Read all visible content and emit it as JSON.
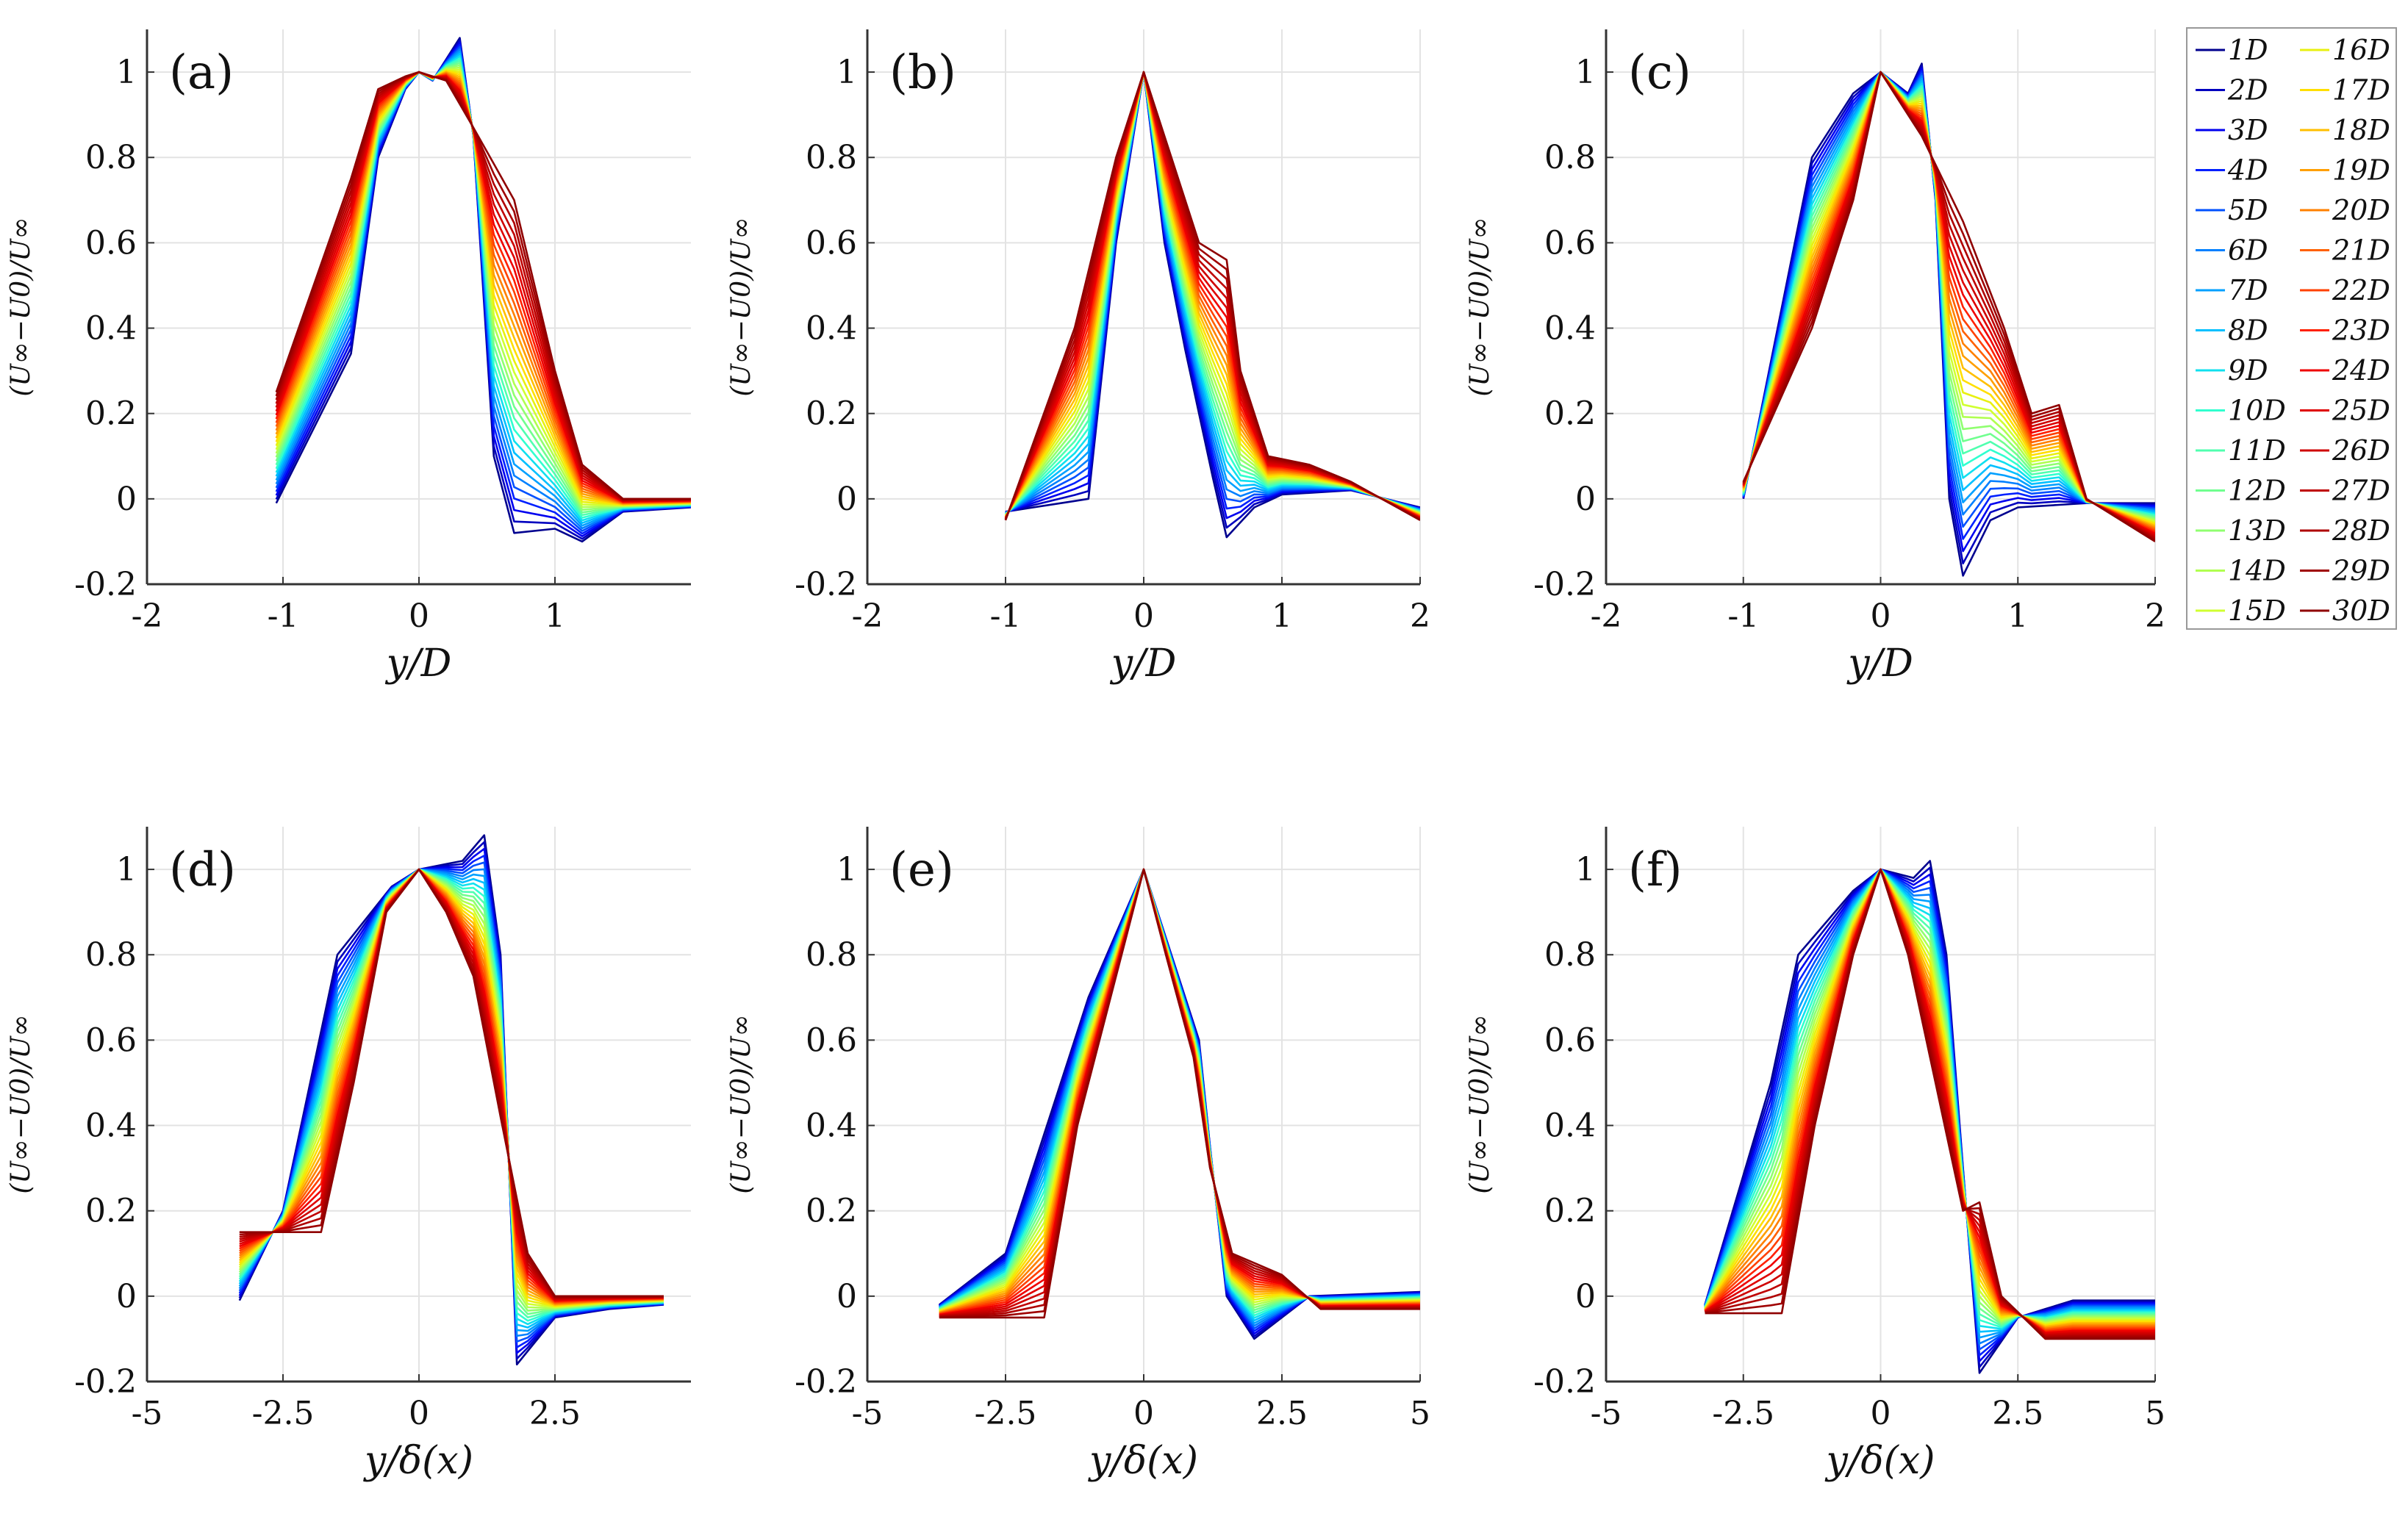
{
  "chart_data": [
    {
      "type": "line",
      "panel": "a",
      "label": "(a)",
      "xlabel": "y/D",
      "ylabel": "(U∞−U0)/U∞",
      "xlim": [
        -2,
        2
      ],
      "ylim": [
        -0.2,
        1.1
      ],
      "xticks": [
        {
          "v": -2,
          "t": "-2"
        },
        {
          "v": -1,
          "t": "-1"
        },
        {
          "v": 0,
          "t": "0"
        },
        {
          "v": 1,
          "t": "1"
        }
      ],
      "yticks": [
        {
          "v": -0.2,
          "t": "-0.2"
        },
        {
          "v": 0,
          "t": "0"
        },
        {
          "v": 0.2,
          "t": "0.2"
        },
        {
          "v": 0.4,
          "t": "0.4"
        },
        {
          "v": 0.6,
          "t": "0.6"
        },
        {
          "v": 0.8,
          "t": "0.8"
        },
        {
          "v": 1,
          "t": "1"
        }
      ],
      "profile_near": [
        [
          -1.05,
          -0.01
        ],
        [
          -0.5,
          0.34
        ],
        [
          -0.3,
          0.8
        ],
        [
          -0.1,
          0.96
        ],
        [
          0,
          1.0
        ],
        [
          0.1,
          0.98
        ],
        [
          0.3,
          1.08
        ],
        [
          0.4,
          0.85
        ],
        [
          0.55,
          0.1
        ],
        [
          0.7,
          -0.08
        ],
        [
          1.0,
          -0.07
        ],
        [
          1.2,
          -0.1
        ],
        [
          1.5,
          -0.03
        ],
        [
          2.0,
          -0.02
        ]
      ],
      "profile_far": [
        [
          -1.05,
          0.25
        ],
        [
          -0.5,
          0.75
        ],
        [
          -0.3,
          0.96
        ],
        [
          -0.1,
          0.99
        ],
        [
          0,
          1.0
        ],
        [
          0.2,
          0.98
        ],
        [
          0.4,
          0.87
        ],
        [
          0.7,
          0.7
        ],
        [
          1.0,
          0.3
        ],
        [
          1.2,
          0.08
        ],
        [
          1.5,
          0.0
        ],
        [
          2.0,
          0.0
        ]
      ]
    },
    {
      "type": "line",
      "panel": "b",
      "label": "(b)",
      "xlabel": "y/D",
      "ylabel": "(U∞−U0)/U∞",
      "xlim": [
        -2,
        2
      ],
      "ylim": [
        -0.2,
        1.1
      ],
      "xticks": [
        {
          "v": -2,
          "t": "-2"
        },
        {
          "v": -1,
          "t": "-1"
        },
        {
          "v": 0,
          "t": "0"
        },
        {
          "v": 1,
          "t": "1"
        },
        {
          "v": 2,
          "t": "2"
        }
      ],
      "yticks": [
        {
          "v": -0.2,
          "t": "-0.2"
        },
        {
          "v": 0,
          "t": "0"
        },
        {
          "v": 0.2,
          "t": "0.2"
        },
        {
          "v": 0.4,
          "t": "0.4"
        },
        {
          "v": 0.6,
          "t": "0.6"
        },
        {
          "v": 0.8,
          "t": "0.8"
        },
        {
          "v": 1,
          "t": "1"
        }
      ],
      "profile_near": [
        [
          -1.0,
          -0.03
        ],
        [
          -0.4,
          0.0
        ],
        [
          -0.2,
          0.6
        ],
        [
          0,
          1.0
        ],
        [
          0.15,
          0.6
        ],
        [
          0.3,
          0.35
        ],
        [
          0.5,
          0.05
        ],
        [
          0.6,
          -0.09
        ],
        [
          0.8,
          -0.02
        ],
        [
          1.0,
          0.01
        ],
        [
          1.5,
          0.02
        ],
        [
          2.0,
          -0.02
        ]
      ],
      "profile_far": [
        [
          -1.0,
          -0.05
        ],
        [
          -0.5,
          0.4
        ],
        [
          -0.2,
          0.8
        ],
        [
          0,
          1.0
        ],
        [
          0.2,
          0.8
        ],
        [
          0.4,
          0.6
        ],
        [
          0.6,
          0.56
        ],
        [
          0.7,
          0.3
        ],
        [
          0.9,
          0.1
        ],
        [
          1.2,
          0.08
        ],
        [
          1.5,
          0.04
        ],
        [
          2.0,
          -0.05
        ]
      ]
    },
    {
      "type": "line",
      "panel": "c",
      "label": "(c)",
      "xlabel": "y/D",
      "ylabel": "(U∞−U0)/U∞",
      "xlim": [
        -2,
        2
      ],
      "ylim": [
        -0.2,
        1.1
      ],
      "xticks": [
        {
          "v": -2,
          "t": "-2"
        },
        {
          "v": -1,
          "t": "-1"
        },
        {
          "v": 0,
          "t": "0"
        },
        {
          "v": 1,
          "t": "1"
        },
        {
          "v": 2,
          "t": "2"
        }
      ],
      "yticks": [
        {
          "v": -0.2,
          "t": "-0.2"
        },
        {
          "v": 0,
          "t": "0"
        },
        {
          "v": 0.2,
          "t": "0.2"
        },
        {
          "v": 0.4,
          "t": "0.4"
        },
        {
          "v": 0.6,
          "t": "0.6"
        },
        {
          "v": 0.8,
          "t": "0.8"
        },
        {
          "v": 1,
          "t": "1"
        }
      ],
      "profile_near": [
        [
          -1.0,
          0.0
        ],
        [
          -0.5,
          0.8
        ],
        [
          -0.2,
          0.95
        ],
        [
          0,
          1.0
        ],
        [
          0.2,
          0.95
        ],
        [
          0.3,
          1.02
        ],
        [
          0.4,
          0.7
        ],
        [
          0.5,
          0.0
        ],
        [
          0.6,
          -0.18
        ],
        [
          0.8,
          -0.05
        ],
        [
          1.0,
          -0.02
        ],
        [
          1.5,
          -0.01
        ],
        [
          2.0,
          -0.01
        ]
      ],
      "profile_far": [
        [
          -1.0,
          0.04
        ],
        [
          -0.5,
          0.4
        ],
        [
          -0.2,
          0.7
        ],
        [
          0,
          1.0
        ],
        [
          0.3,
          0.85
        ],
        [
          0.6,
          0.65
        ],
        [
          0.9,
          0.4
        ],
        [
          1.1,
          0.2
        ],
        [
          1.3,
          0.22
        ],
        [
          1.5,
          0.0
        ],
        [
          2.0,
          -0.1
        ]
      ]
    },
    {
      "type": "line",
      "panel": "d",
      "label": "(d)",
      "xlabel": "y/δ(x)",
      "ylabel": "(U∞−U0)/U∞",
      "xlim": [
        -5,
        5
      ],
      "ylim": [
        -0.2,
        1.1
      ],
      "xticks": [
        {
          "v": -5,
          "t": "-5"
        },
        {
          "v": -2.5,
          "t": "-2.5"
        },
        {
          "v": 0,
          "t": "0"
        },
        {
          "v": 2.5,
          "t": "2.5"
        }
      ],
      "yticks": [
        {
          "v": -0.2,
          "t": "-0.2"
        },
        {
          "v": 0,
          "t": "0"
        },
        {
          "v": 0.2,
          "t": "0.2"
        },
        {
          "v": 0.4,
          "t": "0.4"
        },
        {
          "v": 0.6,
          "t": "0.6"
        },
        {
          "v": 0.8,
          "t": "0.8"
        },
        {
          "v": 1,
          "t": "1"
        }
      ],
      "profile_near": [
        [
          -3.3,
          -0.01
        ],
        [
          -2.5,
          0.2
        ],
        [
          -1.5,
          0.8
        ],
        [
          -0.5,
          0.96
        ],
        [
          0,
          1.0
        ],
        [
          0.8,
          1.02
        ],
        [
          1.2,
          1.08
        ],
        [
          1.5,
          0.8
        ],
        [
          1.8,
          -0.16
        ],
        [
          2.5,
          -0.05
        ],
        [
          3.5,
          -0.03
        ],
        [
          4.5,
          -0.02
        ]
      ],
      "profile_far": [
        [
          -1.8,
          0.15
        ],
        [
          -1.2,
          0.5
        ],
        [
          -0.6,
          0.9
        ],
        [
          0,
          1.0
        ],
        [
          0.5,
          0.9
        ],
        [
          1.0,
          0.75
        ],
        [
          1.5,
          0.42
        ],
        [
          2.0,
          0.1
        ],
        [
          2.5,
          0.0
        ],
        [
          3.5,
          0.0
        ]
      ]
    },
    {
      "type": "line",
      "panel": "e",
      "label": "(e)",
      "xlabel": "y/δ(x)",
      "ylabel": "(U∞−U0)/U∞",
      "xlim": [
        -5,
        5
      ],
      "ylim": [
        -0.2,
        1.1
      ],
      "xticks": [
        {
          "v": -5,
          "t": "-5"
        },
        {
          "v": -2.5,
          "t": "-2.5"
        },
        {
          "v": 0,
          "t": "0"
        },
        {
          "v": 2.5,
          "t": "2.5"
        },
        {
          "v": 5,
          "t": "5"
        }
      ],
      "yticks": [
        {
          "v": -0.2,
          "t": "-0.2"
        },
        {
          "v": 0,
          "t": "0"
        },
        {
          "v": 0.2,
          "t": "0.2"
        },
        {
          "v": 0.4,
          "t": "0.4"
        },
        {
          "v": 0.6,
          "t": "0.6"
        },
        {
          "v": 0.8,
          "t": "0.8"
        },
        {
          "v": 1,
          "t": "1"
        }
      ],
      "profile_near": [
        [
          -3.7,
          -0.02
        ],
        [
          -2.5,
          0.1
        ],
        [
          -1.0,
          0.7
        ],
        [
          -0.5,
          0.85
        ],
        [
          0,
          1.0
        ],
        [
          0.5,
          0.8
        ],
        [
          1.0,
          0.6
        ],
        [
          1.2,
          0.35
        ],
        [
          1.5,
          0.0
        ],
        [
          2.0,
          -0.1
        ],
        [
          3.0,
          0.0
        ],
        [
          5.0,
          0.01
        ]
      ],
      "profile_far": [
        [
          -1.8,
          -0.05
        ],
        [
          -1.2,
          0.4
        ],
        [
          -0.5,
          0.75
        ],
        [
          0,
          1.0
        ],
        [
          0.4,
          0.8
        ],
        [
          0.9,
          0.56
        ],
        [
          1.2,
          0.3
        ],
        [
          1.6,
          0.1
        ],
        [
          2.5,
          0.05
        ],
        [
          3.2,
          -0.03
        ]
      ]
    },
    {
      "type": "line",
      "panel": "f",
      "label": "(f)",
      "xlabel": "y/δ(x)",
      "ylabel": "(U∞−U0)/U∞",
      "xlim": [
        -5,
        5
      ],
      "ylim": [
        -0.2,
        1.1
      ],
      "xticks": [
        {
          "v": -5,
          "t": "-5"
        },
        {
          "v": -2.5,
          "t": "-2.5"
        },
        {
          "v": 0,
          "t": "0"
        },
        {
          "v": 2.5,
          "t": "2.5"
        },
        {
          "v": 5,
          "t": "5"
        }
      ],
      "yticks": [
        {
          "v": -0.2,
          "t": "-0.2"
        },
        {
          "v": 0,
          "t": "0"
        },
        {
          "v": 0.2,
          "t": "0.2"
        },
        {
          "v": 0.4,
          "t": "0.4"
        },
        {
          "v": 0.6,
          "t": "0.6"
        },
        {
          "v": 0.8,
          "t": "0.8"
        },
        {
          "v": 1,
          "t": "1"
        }
      ],
      "profile_near": [
        [
          -3.2,
          -0.02
        ],
        [
          -2.0,
          0.5
        ],
        [
          -1.5,
          0.8
        ],
        [
          -0.5,
          0.95
        ],
        [
          0,
          1.0
        ],
        [
          0.6,
          0.98
        ],
        [
          0.9,
          1.02
        ],
        [
          1.2,
          0.8
        ],
        [
          1.5,
          0.3
        ],
        [
          1.8,
          -0.18
        ],
        [
          2.5,
          -0.05
        ],
        [
          3.5,
          -0.01
        ],
        [
          5.0,
          -0.01
        ]
      ],
      "profile_far": [
        [
          -1.8,
          -0.04
        ],
        [
          -1.2,
          0.4
        ],
        [
          -0.5,
          0.8
        ],
        [
          0,
          1.0
        ],
        [
          0.5,
          0.8
        ],
        [
          1.0,
          0.5
        ],
        [
          1.5,
          0.2
        ],
        [
          1.8,
          0.22
        ],
        [
          2.2,
          0.0
        ],
        [
          3.0,
          -0.1
        ]
      ]
    }
  ],
  "legend": {
    "entries": [
      "1D",
      "2D",
      "3D",
      "4D",
      "5D",
      "6D",
      "7D",
      "8D",
      "9D",
      "10D",
      "11D",
      "12D",
      "13D",
      "14D",
      "15D",
      "16D",
      "17D",
      "18D",
      "19D",
      "20D",
      "21D",
      "22D",
      "23D",
      "24D",
      "25D",
      "26D",
      "27D",
      "28D",
      "29D",
      "30D"
    ],
    "colors": [
      "#00008f",
      "#0000bf",
      "#0000ef",
      "#0020ff",
      "#0050ff",
      "#0080ff",
      "#00a0ff",
      "#00c0ff",
      "#10e0ef",
      "#30ffcf",
      "#50ffaf",
      "#70ff8f",
      "#90ff70",
      "#b0ff50",
      "#d0ff30",
      "#e8f010",
      "#ffdf00",
      "#ffbf00",
      "#ff9f00",
      "#ff8000",
      "#ff6000",
      "#ff4000",
      "#ff2000",
      "#ef0000",
      "#df0000",
      "#cf0000",
      "#bf0000",
      "#af0000",
      "#9f0000",
      "#8f0000"
    ]
  }
}
